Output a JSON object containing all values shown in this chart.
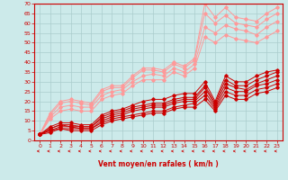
{
  "xlabel": "Vent moyen/en rafales ( km/h )",
  "bg_color": "#cceaea",
  "grid_color": "#aacccc",
  "axis_color": "#cc0000",
  "label_color": "#cc0000",
  "xlim": [
    -0.5,
    23.5
  ],
  "ylim": [
    0,
    70
  ],
  "xticks": [
    0,
    1,
    2,
    3,
    4,
    5,
    6,
    7,
    8,
    9,
    10,
    11,
    12,
    13,
    14,
    15,
    16,
    17,
    18,
    19,
    20,
    21,
    22,
    23
  ],
  "yticks": [
    0,
    5,
    10,
    15,
    20,
    25,
    30,
    35,
    40,
    45,
    50,
    55,
    60,
    65,
    70
  ],
  "series_light": [
    {
      "x": [
        0,
        1,
        2,
        3,
        4,
        5,
        6,
        7,
        8,
        9,
        10,
        11,
        12,
        13,
        14,
        15,
        16,
        17,
        18,
        19,
        20,
        21,
        22,
        23
      ],
      "y": [
        3,
        14,
        20,
        21,
        20,
        19,
        26,
        28,
        28,
        33,
        37,
        37,
        36,
        40,
        38,
        42,
        70,
        63,
        68,
        63,
        62,
        61,
        65,
        68
      ]
    },
    {
      "x": [
        0,
        1,
        2,
        3,
        4,
        5,
        6,
        7,
        8,
        9,
        10,
        11,
        12,
        13,
        14,
        15,
        16,
        17,
        18,
        19,
        20,
        21,
        22,
        23
      ],
      "y": [
        3,
        13,
        19,
        20,
        19,
        18,
        25,
        27,
        27,
        32,
        36,
        36,
        35,
        39,
        37,
        41,
        65,
        60,
        64,
        60,
        59,
        58,
        62,
        65
      ]
    },
    {
      "x": [
        0,
        1,
        2,
        3,
        4,
        5,
        6,
        7,
        8,
        9,
        10,
        11,
        12,
        13,
        14,
        15,
        16,
        17,
        18,
        19,
        20,
        21,
        22,
        23
      ],
      "y": [
        3,
        12,
        17,
        18,
        17,
        17,
        23,
        25,
        26,
        30,
        33,
        34,
        33,
        37,
        35,
        39,
        58,
        55,
        59,
        57,
        56,
        54,
        58,
        61
      ]
    },
    {
      "x": [
        0,
        1,
        2,
        3,
        4,
        5,
        6,
        7,
        8,
        9,
        10,
        11,
        12,
        13,
        14,
        15,
        16,
        17,
        18,
        19,
        20,
        21,
        22,
        23
      ],
      "y": [
        3,
        11,
        15,
        16,
        15,
        15,
        21,
        23,
        24,
        28,
        31,
        31,
        31,
        35,
        33,
        37,
        53,
        50,
        54,
        52,
        51,
        50,
        53,
        56
      ]
    }
  ],
  "series_dark": [
    {
      "x": [
        0,
        1,
        2,
        3,
        4,
        5,
        6,
        7,
        8,
        9,
        10,
        11,
        12,
        13,
        14,
        15,
        16,
        17,
        18,
        19,
        20,
        21,
        22,
        23
      ],
      "y": [
        3,
        7,
        9,
        9,
        8,
        8,
        13,
        15,
        16,
        18,
        20,
        21,
        21,
        23,
        24,
        24,
        30,
        20,
        33,
        30,
        30,
        33,
        35,
        36
      ]
    },
    {
      "x": [
        0,
        1,
        2,
        3,
        4,
        5,
        6,
        7,
        8,
        9,
        10,
        11,
        12,
        13,
        14,
        15,
        16,
        17,
        18,
        19,
        20,
        21,
        22,
        23
      ],
      "y": [
        3,
        6,
        8,
        8,
        7,
        7,
        12,
        14,
        15,
        17,
        18,
        19,
        19,
        21,
        22,
        22,
        28,
        19,
        31,
        28,
        28,
        31,
        33,
        35
      ]
    },
    {
      "x": [
        0,
        1,
        2,
        3,
        4,
        5,
        6,
        7,
        8,
        9,
        10,
        11,
        12,
        13,
        14,
        15,
        16,
        17,
        18,
        19,
        20,
        21,
        22,
        23
      ],
      "y": [
        3,
        6,
        8,
        7,
        7,
        7,
        11,
        13,
        14,
        16,
        17,
        18,
        18,
        20,
        21,
        21,
        27,
        18,
        29,
        27,
        26,
        29,
        31,
        33
      ]
    },
    {
      "x": [
        0,
        1,
        2,
        3,
        4,
        5,
        6,
        7,
        8,
        9,
        10,
        11,
        12,
        13,
        14,
        15,
        16,
        17,
        18,
        19,
        20,
        21,
        22,
        23
      ],
      "y": [
        3,
        5,
        7,
        7,
        6,
        6,
        10,
        12,
        13,
        15,
        16,
        17,
        17,
        19,
        20,
        20,
        25,
        17,
        27,
        25,
        25,
        28,
        29,
        31
      ]
    },
    {
      "x": [
        0,
        1,
        2,
        3,
        4,
        5,
        6,
        7,
        8,
        9,
        10,
        11,
        12,
        13,
        14,
        15,
        16,
        17,
        18,
        19,
        20,
        21,
        22,
        23
      ],
      "y": [
        3,
        5,
        6,
        6,
        6,
        6,
        9,
        11,
        12,
        13,
        14,
        15,
        15,
        17,
        18,
        19,
        23,
        16,
        25,
        23,
        23,
        26,
        27,
        29
      ]
    },
    {
      "x": [
        0,
        1,
        2,
        3,
        4,
        5,
        6,
        7,
        8,
        9,
        10,
        11,
        12,
        13,
        14,
        15,
        16,
        17,
        18,
        19,
        20,
        21,
        22,
        23
      ],
      "y": [
        3,
        4,
        6,
        5,
        5,
        5,
        8,
        10,
        11,
        12,
        13,
        14,
        14,
        16,
        17,
        17,
        21,
        15,
        23,
        21,
        21,
        24,
        25,
        27
      ]
    }
  ],
  "light_color": "#ff9999",
  "dark_color": "#cc0000",
  "marker_size": 1.8,
  "linewidth_light": 0.7,
  "linewidth_dark": 0.7
}
